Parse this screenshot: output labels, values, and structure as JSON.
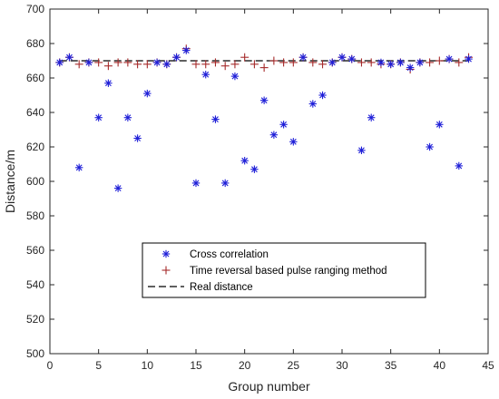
{
  "chart_data": {
    "type": "scatter",
    "title": "",
    "xlabel": "Group number",
    "ylabel": "Distance/m",
    "xlim": [
      0,
      45
    ],
    "ylim": [
      500,
      700
    ],
    "xticks": [
      0,
      5,
      10,
      15,
      20,
      25,
      30,
      35,
      40,
      45
    ],
    "yticks": [
      500,
      520,
      540,
      560,
      580,
      600,
      620,
      640,
      660,
      680,
      700
    ],
    "grid": false,
    "legend_position": "lower-center",
    "series": [
      {
        "name": "Cross correlation",
        "marker": "asterisk",
        "color": "#1f1fd8",
        "x": [
          1,
          2,
          3,
          4,
          5,
          6,
          7,
          8,
          9,
          10,
          11,
          12,
          13,
          14,
          15,
          16,
          17,
          18,
          19,
          20,
          21,
          22,
          23,
          24,
          25,
          26,
          27,
          28,
          29,
          30,
          31,
          32,
          33,
          34,
          35,
          36,
          37,
          38,
          39,
          40,
          41,
          42,
          43
        ],
        "y": [
          669,
          672,
          608,
          669,
          637,
          657,
          596,
          637,
          625,
          651,
          669,
          668,
          672,
          676,
          599,
          662,
          636,
          599,
          661,
          612,
          607,
          647,
          627,
          633,
          623,
          672,
          645,
          650,
          669,
          672,
          671,
          618,
          637,
          669,
          668,
          669,
          666,
          669,
          620,
          633,
          671,
          609,
          671
        ]
      },
      {
        "name": "Time reversal based pulse ranging method",
        "marker": "plus",
        "color": "#a52a2a",
        "x": [
          1,
          2,
          3,
          4,
          5,
          6,
          7,
          8,
          9,
          10,
          11,
          12,
          13,
          14,
          15,
          16,
          17,
          18,
          19,
          20,
          21,
          22,
          23,
          24,
          25,
          26,
          27,
          28,
          29,
          30,
          31,
          32,
          33,
          34,
          35,
          36,
          37,
          38,
          39,
          40,
          41,
          42,
          43
        ],
        "y": [
          669,
          672,
          668,
          669,
          669,
          667,
          669,
          669,
          668,
          668,
          669,
          668,
          672,
          677,
          668,
          668,
          669,
          667,
          668,
          672,
          668,
          666,
          670,
          669,
          669,
          672,
          669,
          668,
          669,
          672,
          671,
          669,
          669,
          668,
          668,
          669,
          665,
          669,
          669,
          670,
          671,
          669,
          672
        ]
      },
      {
        "name": "Real distance",
        "style": "dashed",
        "color": "#000000",
        "x": [
          1,
          43
        ],
        "y": [
          670,
          670
        ]
      }
    ]
  }
}
